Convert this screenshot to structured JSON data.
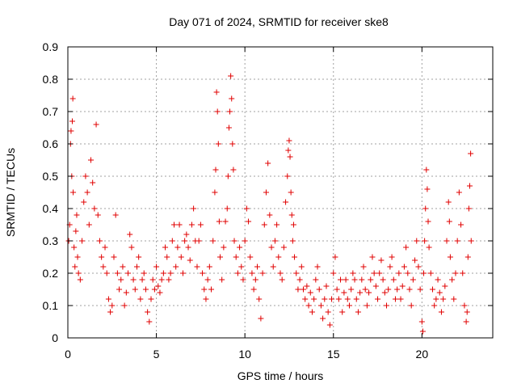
{
  "chart_data": {
    "type": "scatter",
    "title": "Day 071 of 2024, SRMTID for receiver ske8",
    "xlabel": "GPS time / hours",
    "ylabel": "SRMTID / TECUs",
    "xlim": [
      0,
      24
    ],
    "ylim": [
      0,
      0.9
    ],
    "xticks": [
      0,
      5,
      10,
      15,
      20
    ],
    "xtick_labels": [
      "0",
      "5",
      "10",
      "15",
      "20"
    ],
    "yticks": [
      0,
      0.1,
      0.2,
      0.3,
      0.4,
      0.5,
      0.6,
      0.7,
      0.8,
      0.9
    ],
    "ytick_labels": [
      "0",
      "0.1",
      "0.2",
      "0.3",
      "0.4",
      "0.5",
      "0.6",
      "0.7",
      "0.8",
      "0.9"
    ],
    "grid": true,
    "marker": "+",
    "color": "#e00000",
    "series": [
      {
        "name": "SRMTID",
        "points": [
          [
            0.05,
            0.3
          ],
          [
            0.1,
            0.35
          ],
          [
            0.15,
            0.6
          ],
          [
            0.18,
            0.64
          ],
          [
            0.22,
            0.5
          ],
          [
            0.25,
            0.67
          ],
          [
            0.28,
            0.74
          ],
          [
            0.3,
            0.45
          ],
          [
            0.35,
            0.28
          ],
          [
            0.4,
            0.22
          ],
          [
            0.45,
            0.33
          ],
          [
            0.5,
            0.38
          ],
          [
            0.55,
            0.25
          ],
          [
            0.6,
            0.2
          ],
          [
            0.7,
            0.18
          ],
          [
            0.8,
            0.3
          ],
          [
            0.9,
            0.42
          ],
          [
            1.0,
            0.5
          ],
          [
            1.1,
            0.45
          ],
          [
            1.2,
            0.35
          ],
          [
            1.3,
            0.55
          ],
          [
            1.4,
            0.48
          ],
          [
            1.5,
            0.4
          ],
          [
            1.6,
            0.66
          ],
          [
            1.7,
            0.38
          ],
          [
            1.8,
            0.3
          ],
          [
            1.9,
            0.25
          ],
          [
            2.0,
            0.22
          ],
          [
            2.1,
            0.28
          ],
          [
            2.2,
            0.2
          ],
          [
            2.3,
            0.12
          ],
          [
            2.4,
            0.08
          ],
          [
            2.5,
            0.1
          ],
          [
            2.6,
            0.25
          ],
          [
            2.7,
            0.38
          ],
          [
            2.8,
            0.2
          ],
          [
            2.9,
            0.15
          ],
          [
            3.0,
            0.18
          ],
          [
            3.1,
            0.22
          ],
          [
            3.2,
            0.1
          ],
          [
            3.3,
            0.14
          ],
          [
            3.4,
            0.2
          ],
          [
            3.5,
            0.32
          ],
          [
            3.6,
            0.28
          ],
          [
            3.7,
            0.18
          ],
          [
            3.8,
            0.15
          ],
          [
            3.9,
            0.22
          ],
          [
            4.0,
            0.25
          ],
          [
            4.1,
            0.12
          ],
          [
            4.2,
            0.18
          ],
          [
            4.3,
            0.2
          ],
          [
            4.4,
            0.15
          ],
          [
            4.5,
            0.08
          ],
          [
            4.6,
            0.05
          ],
          [
            4.7,
            0.12
          ],
          [
            4.8,
            0.18
          ],
          [
            4.9,
            0.15
          ],
          [
            5.0,
            0.22
          ],
          [
            5.1,
            0.16
          ],
          [
            5.2,
            0.14
          ],
          [
            5.3,
            0.18
          ],
          [
            5.4,
            0.2
          ],
          [
            5.5,
            0.28
          ],
          [
            5.6,
            0.25
          ],
          [
            5.7,
            0.18
          ],
          [
            5.8,
            0.2
          ],
          [
            5.9,
            0.3
          ],
          [
            6.0,
            0.35
          ],
          [
            6.1,
            0.22
          ],
          [
            6.2,
            0.28
          ],
          [
            6.3,
            0.35
          ],
          [
            6.4,
            0.25
          ],
          [
            6.5,
            0.2
          ],
          [
            6.6,
            0.3
          ],
          [
            6.7,
            0.32
          ],
          [
            6.8,
            0.28
          ],
          [
            6.9,
            0.24
          ],
          [
            7.0,
            0.35
          ],
          [
            7.1,
            0.4
          ],
          [
            7.2,
            0.3
          ],
          [
            7.3,
            0.22
          ],
          [
            7.4,
            0.3
          ],
          [
            7.5,
            0.35
          ],
          [
            7.6,
            0.2
          ],
          [
            7.7,
            0.15
          ],
          [
            7.8,
            0.12
          ],
          [
            7.9,
            0.18
          ],
          [
            8.0,
            0.22
          ],
          [
            8.1,
            0.15
          ],
          [
            8.2,
            0.3
          ],
          [
            8.3,
            0.45
          ],
          [
            8.35,
            0.52
          ],
          [
            8.4,
            0.76
          ],
          [
            8.45,
            0.7
          ],
          [
            8.5,
            0.6
          ],
          [
            8.55,
            0.36
          ],
          [
            8.6,
            0.25
          ],
          [
            8.7,
            0.18
          ],
          [
            8.8,
            0.28
          ],
          [
            8.9,
            0.36
          ],
          [
            9.0,
            0.4
          ],
          [
            9.05,
            0.5
          ],
          [
            9.1,
            0.65
          ],
          [
            9.15,
            0.7
          ],
          [
            9.2,
            0.81
          ],
          [
            9.25,
            0.74
          ],
          [
            9.3,
            0.6
          ],
          [
            9.35,
            0.52
          ],
          [
            9.4,
            0.3
          ],
          [
            9.5,
            0.25
          ],
          [
            9.6,
            0.2
          ],
          [
            9.7,
            0.28
          ],
          [
            9.8,
            0.22
          ],
          [
            9.9,
            0.18
          ],
          [
            10.0,
            0.3
          ],
          [
            10.1,
            0.4
          ],
          [
            10.2,
            0.36
          ],
          [
            10.3,
            0.25
          ],
          [
            10.4,
            0.2
          ],
          [
            10.5,
            0.15
          ],
          [
            10.6,
            0.18
          ],
          [
            10.7,
            0.22
          ],
          [
            10.8,
            0.12
          ],
          [
            10.9,
            0.06
          ],
          [
            11.0,
            0.2
          ],
          [
            11.1,
            0.35
          ],
          [
            11.2,
            0.45
          ],
          [
            11.3,
            0.54
          ],
          [
            11.4,
            0.38
          ],
          [
            11.5,
            0.28
          ],
          [
            11.6,
            0.22
          ],
          [
            11.7,
            0.3
          ],
          [
            11.8,
            0.35
          ],
          [
            11.9,
            0.25
          ],
          [
            12.0,
            0.2
          ],
          [
            12.1,
            0.18
          ],
          [
            12.2,
            0.28
          ],
          [
            12.3,
            0.42
          ],
          [
            12.4,
            0.5
          ],
          [
            12.45,
            0.58
          ],
          [
            12.5,
            0.61
          ],
          [
            12.55,
            0.56
          ],
          [
            12.6,
            0.45
          ],
          [
            12.65,
            0.38
          ],
          [
            12.7,
            0.3
          ],
          [
            12.75,
            0.35
          ],
          [
            12.8,
            0.25
          ],
          [
            12.9,
            0.2
          ],
          [
            13.0,
            0.15
          ],
          [
            13.1,
            0.18
          ],
          [
            13.2,
            0.22
          ],
          [
            13.3,
            0.15
          ],
          [
            13.4,
            0.12
          ],
          [
            13.5,
            0.16
          ],
          [
            13.6,
            0.1
          ],
          [
            13.7,
            0.14
          ],
          [
            13.8,
            0.08
          ],
          [
            13.9,
            0.12
          ],
          [
            14.0,
            0.18
          ],
          [
            14.1,
            0.22
          ],
          [
            14.2,
            0.15
          ],
          [
            14.3,
            0.1
          ],
          [
            14.4,
            0.06
          ],
          [
            14.5,
            0.12
          ],
          [
            14.6,
            0.16
          ],
          [
            14.7,
            0.08
          ],
          [
            14.8,
            0.04
          ],
          [
            14.9,
            0.12
          ],
          [
            15.0,
            0.2
          ],
          [
            15.1,
            0.25
          ],
          [
            15.2,
            0.15
          ],
          [
            15.3,
            0.12
          ],
          [
            15.4,
            0.18
          ],
          [
            15.5,
            0.08
          ],
          [
            15.6,
            0.14
          ],
          [
            15.7,
            0.18
          ],
          [
            15.8,
            0.12
          ],
          [
            15.9,
            0.1
          ],
          [
            16.0,
            0.15
          ],
          [
            16.1,
            0.2
          ],
          [
            16.2,
            0.18
          ],
          [
            16.3,
            0.12
          ],
          [
            16.4,
            0.08
          ],
          [
            16.5,
            0.14
          ],
          [
            16.6,
            0.18
          ],
          [
            16.7,
            0.22
          ],
          [
            16.8,
            0.15
          ],
          [
            16.9,
            0.1
          ],
          [
            17.0,
            0.14
          ],
          [
            17.1,
            0.18
          ],
          [
            17.2,
            0.25
          ],
          [
            17.3,
            0.2
          ],
          [
            17.4,
            0.16
          ],
          [
            17.5,
            0.12
          ],
          [
            17.6,
            0.2
          ],
          [
            17.7,
            0.24
          ],
          [
            17.8,
            0.18
          ],
          [
            17.9,
            0.14
          ],
          [
            18.0,
            0.1
          ],
          [
            18.1,
            0.15
          ],
          [
            18.2,
            0.22
          ],
          [
            18.3,
            0.25
          ],
          [
            18.4,
            0.18
          ],
          [
            18.5,
            0.12
          ],
          [
            18.6,
            0.15
          ],
          [
            18.7,
            0.2
          ],
          [
            18.8,
            0.12
          ],
          [
            18.9,
            0.16
          ],
          [
            19.0,
            0.22
          ],
          [
            19.1,
            0.28
          ],
          [
            19.2,
            0.2
          ],
          [
            19.3,
            0.15
          ],
          [
            19.4,
            0.1
          ],
          [
            19.5,
            0.18
          ],
          [
            19.6,
            0.24
          ],
          [
            19.7,
            0.3
          ],
          [
            19.8,
            0.22
          ],
          [
            19.9,
            0.15
          ],
          [
            20.0,
            0.05
          ],
          [
            20.05,
            0.02
          ],
          [
            20.1,
            0.2
          ],
          [
            20.15,
            0.3
          ],
          [
            20.2,
            0.4
          ],
          [
            20.25,
            0.52
          ],
          [
            20.3,
            0.46
          ],
          [
            20.35,
            0.36
          ],
          [
            20.4,
            0.28
          ],
          [
            20.5,
            0.2
          ],
          [
            20.6,
            0.15
          ],
          [
            20.7,
            0.1
          ],
          [
            20.8,
            0.12
          ],
          [
            20.9,
            0.18
          ],
          [
            21.0,
            0.14
          ],
          [
            21.1,
            0.08
          ],
          [
            21.2,
            0.12
          ],
          [
            21.3,
            0.16
          ],
          [
            21.4,
            0.3
          ],
          [
            21.5,
            0.42
          ],
          [
            21.55,
            0.36
          ],
          [
            21.6,
            0.25
          ],
          [
            21.7,
            0.18
          ],
          [
            21.8,
            0.12
          ],
          [
            21.9,
            0.2
          ],
          [
            22.0,
            0.3
          ],
          [
            22.1,
            0.45
          ],
          [
            22.2,
            0.35
          ],
          [
            22.3,
            0.2
          ],
          [
            22.4,
            0.1
          ],
          [
            22.5,
            0.05
          ],
          [
            22.55,
            0.08
          ],
          [
            22.6,
            0.25
          ],
          [
            22.65,
            0.4
          ],
          [
            22.7,
            0.47
          ],
          [
            22.75,
            0.57
          ],
          [
            22.78,
            0.3
          ]
        ]
      }
    ]
  }
}
